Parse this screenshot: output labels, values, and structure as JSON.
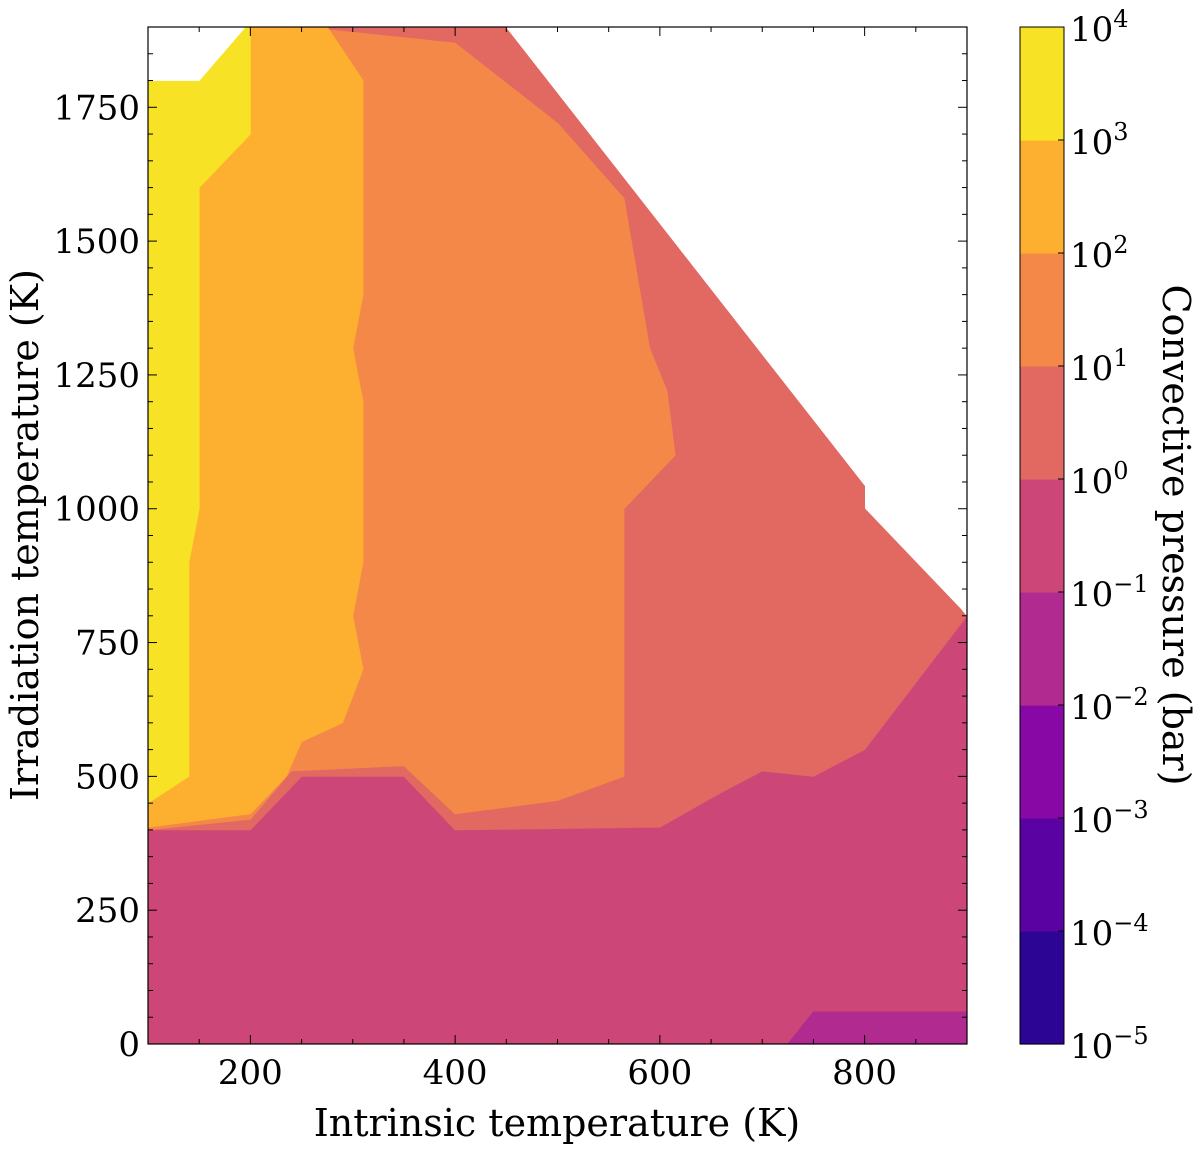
{
  "chart_data": {
    "type": "heatmap",
    "subtype": "filled-contour",
    "xlabel": "Intrinsic temperature (K)",
    "ylabel": "Irradiation temperature (K)",
    "colorbar_label": "Convective pressure (bar)",
    "xlim": [
      100,
      900
    ],
    "ylim": [
      0,
      1900
    ],
    "xticks": [
      200,
      400,
      600,
      800
    ],
    "yticks": [
      0,
      250,
      500,
      750,
      1000,
      1250,
      1500,
      1750
    ],
    "colorbar": {
      "scale": "log",
      "ticks": [
        "10^-5",
        "10^-4",
        "10^-3",
        "10^-2",
        "10^-1",
        "10^0",
        "10^1",
        "10^2",
        "10^3",
        "10^4"
      ],
      "levels": [
        {
          "range": [
            "10^-5",
            "10^-4"
          ],
          "color": "#2c0594"
        },
        {
          "range": [
            "10^-4",
            "10^-3"
          ],
          "color": "#5b02a3"
        },
        {
          "range": [
            "10^-3",
            "10^-2"
          ],
          "color": "#8808a6"
        },
        {
          "range": [
            "10^-2",
            "10^-1"
          ],
          "color": "#b02a90"
        },
        {
          "range": [
            "10^-1",
            "10^0"
          ],
          "color": "#cc4778"
        },
        {
          "range": [
            "10^0",
            "10^1"
          ],
          "color": "#e26862"
        },
        {
          "range": [
            "10^1",
            "10^2"
          ],
          "color": "#f48849"
        },
        {
          "range": [
            "10^2",
            "10^3"
          ],
          "color": "#fdb02f"
        },
        {
          "range": [
            "10^3",
            "10^4"
          ],
          "color": "#f7e225"
        }
      ]
    },
    "regions": [
      {
        "level": "10^-1 to 10^0",
        "color": "#cc4778",
        "points": [
          [
            100,
            0
          ],
          [
            725,
            0
          ],
          [
            750,
            60
          ],
          [
            900,
            60
          ],
          [
            900,
            800
          ],
          [
            100,
            800
          ]
        ]
      },
      {
        "level": "10^0 to 10^1",
        "color": "#e26862",
        "points": [
          [
            100,
            400
          ],
          [
            200,
            400
          ],
          [
            250,
            500
          ],
          [
            350,
            500
          ],
          [
            400,
            400
          ],
          [
            600,
            405
          ],
          [
            660,
            470
          ],
          [
            700,
            510
          ],
          [
            750,
            500
          ],
          [
            800,
            550
          ],
          [
            900,
            800
          ],
          [
            800,
            1000
          ],
          [
            800,
            1100
          ],
          [
            450,
            1900
          ],
          [
            100,
            1900
          ]
        ]
      },
      {
        "level": "10^1 to 10^2",
        "color": "#f48849",
        "points": [
          [
            100,
            400
          ],
          [
            200,
            420
          ],
          [
            240,
            510
          ],
          [
            350,
            520
          ],
          [
            400,
            430
          ],
          [
            500,
            455
          ],
          [
            565,
            500
          ],
          [
            565,
            1000
          ],
          [
            615,
            1100
          ],
          [
            607,
            1220
          ],
          [
            590,
            1300
          ],
          [
            565,
            1580
          ],
          [
            500,
            1720
          ],
          [
            400,
            1870
          ],
          [
            250,
            1900
          ],
          [
            100,
            1900
          ]
        ]
      },
      {
        "level": "10^2 to 10^3",
        "color": "#fdb02f",
        "points": [
          [
            100,
            405
          ],
          [
            200,
            430
          ],
          [
            235,
            500
          ],
          [
            250,
            565
          ],
          [
            290,
            600
          ],
          [
            310,
            700
          ],
          [
            300,
            800
          ],
          [
            310,
            900
          ],
          [
            310,
            1200
          ],
          [
            300,
            1300
          ],
          [
            310,
            1400
          ],
          [
            310,
            1800
          ],
          [
            275,
            1900
          ],
          [
            100,
            1900
          ]
        ]
      },
      {
        "level": "10^3 to 10^4",
        "color": "#f7e225",
        "points": [
          [
            100,
            450
          ],
          [
            140,
            500
          ],
          [
            140,
            900
          ],
          [
            150,
            1000
          ],
          [
            150,
            1600
          ],
          [
            200,
            1700
          ],
          [
            200,
            1900
          ],
          [
            100,
            1900
          ]
        ]
      },
      {
        "level": "10^-2 to 10^-1",
        "color": "#b02a90",
        "points": [
          [
            725,
            0
          ],
          [
            900,
            0
          ],
          [
            900,
            60
          ],
          [
            750,
            60
          ]
        ]
      }
    ],
    "masks": [
      {
        "name": "undefined-region-top-right",
        "points": [
          [
            450,
            1900
          ],
          [
            900,
            1900
          ],
          [
            900,
            800
          ]
        ]
      },
      {
        "name": "undefined-region-top-left",
        "points": [
          [
            100,
            1800
          ],
          [
            150,
            1800
          ],
          [
            195,
            1900
          ],
          [
            100,
            1900
          ]
        ]
      }
    ]
  }
}
